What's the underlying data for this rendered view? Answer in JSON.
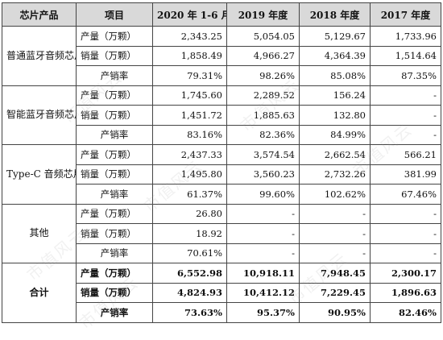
{
  "headers": [
    "芯片产品",
    "项目",
    "2020 年 1-6 月",
    "2019 年度",
    "2018 年度",
    "2017 年度"
  ],
  "groups": [
    {
      "name": "普通蓝牙音频芯片",
      "rows": [
        {
          "item": "产量（万颗）",
          "values": [
            "2,343.25",
            "5,054.05",
            "5,129.67",
            "1,733.96"
          ]
        },
        {
          "item": "销量（万颗）",
          "values": [
            "1,858.49",
            "4,966.27",
            "4,364.39",
            "1,514.64"
          ]
        },
        {
          "item": "产销率",
          "values": [
            "79.31%",
            "98.26%",
            "85.08%",
            "87.35%"
          ]
        }
      ]
    },
    {
      "name": "智能蓝牙音频芯片",
      "rows": [
        {
          "item": "产量（万颗）",
          "values": [
            "1,745.60",
            "2,289.52",
            "156.24",
            "-"
          ]
        },
        {
          "item": "销量（万颗）",
          "values": [
            "1,451.72",
            "1,885.63",
            "132.80",
            "-"
          ]
        },
        {
          "item": "产销率",
          "values": [
            "83.16%",
            "82.36%",
            "84.99%",
            "-"
          ]
        }
      ]
    },
    {
      "name": "Type-C 音频芯片",
      "rows": [
        {
          "item": "产量（万颗）",
          "values": [
            "2,437.33",
            "3,574.54",
            "2,662.54",
            "566.21"
          ]
        },
        {
          "item": "销量（万颗）",
          "values": [
            "1,495.80",
            "3,560.23",
            "2,732.26",
            "381.99"
          ]
        },
        {
          "item": "产销率",
          "values": [
            "61.37%",
            "99.60%",
            "102.62%",
            "67.46%"
          ]
        }
      ]
    },
    {
      "name": "其他",
      "rows": [
        {
          "item": "产量（万颗）",
          "values": [
            "26.80",
            "-",
            "-",
            "-"
          ]
        },
        {
          "item": "销量（万颗）",
          "values": [
            "18.92",
            "-",
            "-",
            "-"
          ]
        },
        {
          "item": "产销率",
          "values": [
            "70.61%",
            "-",
            "-",
            "-"
          ]
        }
      ]
    },
    {
      "name": "合计",
      "total": true,
      "rows": [
        {
          "item": "产量（万颗）",
          "values": [
            "6,552.98",
            "10,918.11",
            "7,948.45",
            "2,300.17"
          ]
        },
        {
          "item": "销量（万颗）",
          "values": [
            "4,824.93",
            "10,412.12",
            "7,229.45",
            "1,896.63"
          ]
        },
        {
          "item": "产销率",
          "values": [
            "73.63%",
            "95.37%",
            "90.95%",
            "82.46%"
          ]
        }
      ]
    }
  ],
  "watermark": "市值风云"
}
